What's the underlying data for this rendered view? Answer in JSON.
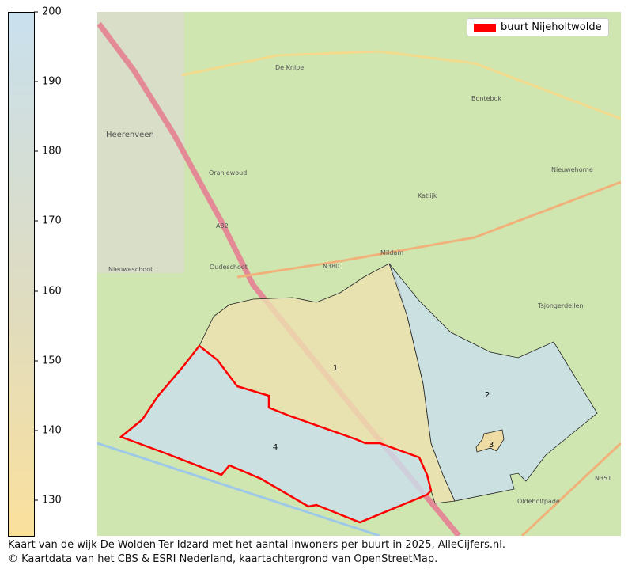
{
  "colorbar": {
    "ticks": [
      130,
      140,
      150,
      160,
      170,
      180,
      190,
      200
    ],
    "min": 125,
    "max": 200,
    "low_color": "#fbe09c",
    "high_color": "#c9e0ee"
  },
  "legend": {
    "label": "buurt Nijeholtwolde",
    "color": "#ff0000"
  },
  "regions": [
    {
      "label": "1",
      "fill": "#eee0b0"
    },
    {
      "label": "2",
      "fill": "#c9e0ee"
    },
    {
      "label": "3",
      "fill": "#f8d995"
    },
    {
      "label": "4",
      "fill": "#c9e0ee"
    }
  ],
  "place_labels": [
    "Heerenveen",
    "De Knipe",
    "Bontebok",
    "Oranjewoud",
    "Katlijk",
    "Nieuwehorne",
    "Nieuweschoot",
    "Oudeschoot",
    "Mildam",
    "Oldeholtpade",
    "A32",
    "N380",
    "N351",
    "Tsjongerdellen"
  ],
  "caption": {
    "line1": "Kaart van de wijk De Wolden-Ter Idzard met het aantal inwoners per buurt in 2025, AlleCijfers.nl.",
    "line2": "© Kaartdata van het CBS & ESRI Nederland, kaartachtergrond van OpenStreetMap."
  }
}
